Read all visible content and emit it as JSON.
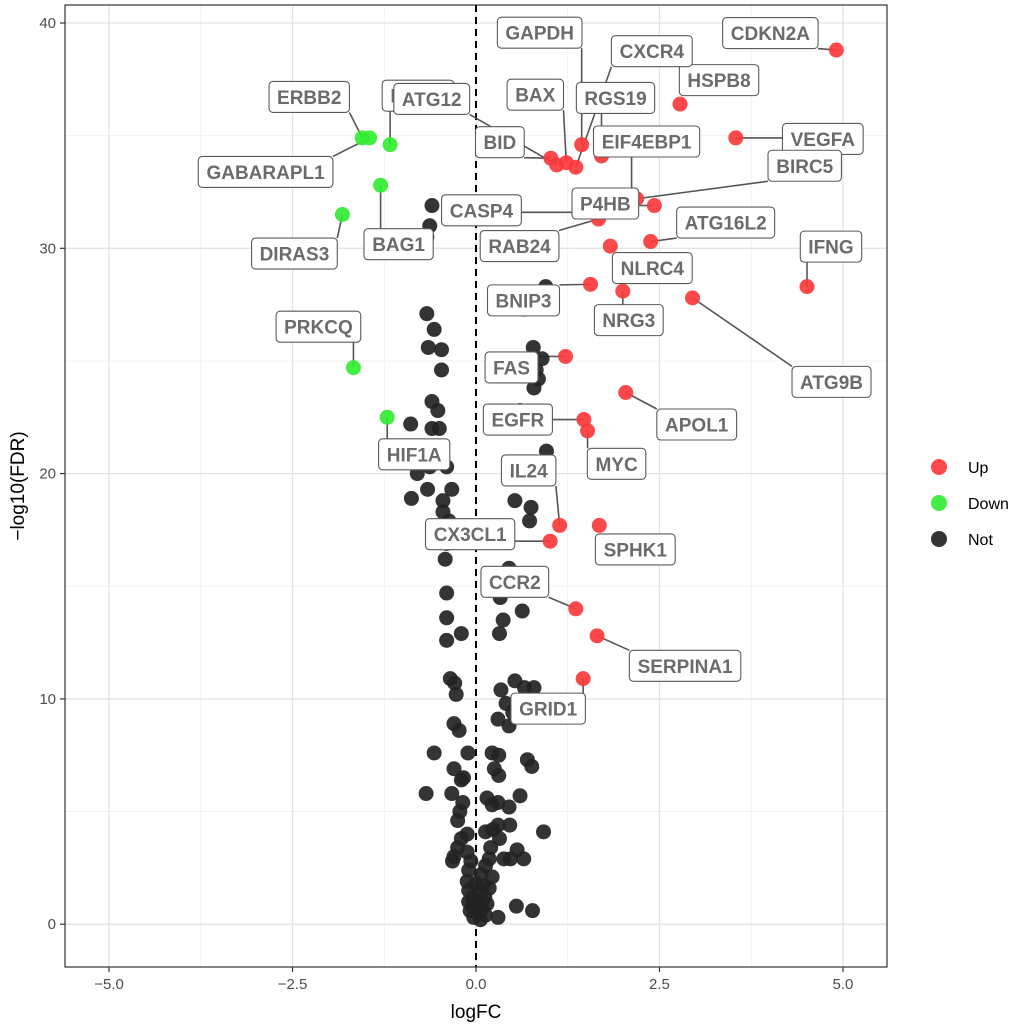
{
  "chart_data": {
    "type": "scatter",
    "title": "",
    "xlabel": "logFC",
    "ylabel": "−log10(FDR)",
    "xlim": [
      -5.6,
      5.6
    ],
    "ylim": [
      -1.9,
      40.8
    ],
    "xticks": [
      -5.0,
      -2.5,
      0.0,
      2.5,
      5.0
    ],
    "xtick_labels": [
      "−5.0",
      "−2.5",
      "0.0",
      "2.5",
      "5.0"
    ],
    "yticks": [
      0,
      10,
      20,
      30,
      40
    ],
    "ytick_labels": [
      "0",
      "10",
      "20",
      "30",
      "40"
    ],
    "grid": true,
    "threshold_line_x": 0,
    "legend": {
      "position": "right",
      "entries": [
        {
          "label": "Up",
          "color": "#f8393c"
        },
        {
          "label": "Down",
          "color": "#33ed33"
        },
        {
          "label": "Not",
          "color": "#232323"
        }
      ]
    },
    "series": [
      {
        "name": "Up",
        "color": "#f8393c",
        "points": [
          {
            "x": 4.91,
            "y": 38.8,
            "label": "CDKN2A"
          },
          {
            "x": 2.78,
            "y": 36.4,
            "label": "HSPB8"
          },
          {
            "x": 3.54,
            "y": 34.9,
            "label": "VEGFA"
          },
          {
            "x": 1.44,
            "y": 34.6,
            "label": "GAPDH"
          },
          {
            "x": 1.71,
            "y": 34.1,
            "label": "RGS19"
          },
          {
            "x": 1.02,
            "y": 34.0,
            "label": "BID"
          },
          {
            "x": 1.1,
            "y": 33.7,
            "label": "ATG12"
          },
          {
            "x": 1.23,
            "y": 33.8,
            "label": "BAX"
          },
          {
            "x": 1.36,
            "y": 33.6,
            "label": "CXCR4"
          },
          {
            "x": 2.12,
            "y": 32.3,
            "label": "EIF4EBP1"
          },
          {
            "x": 2.19,
            "y": 32.2,
            "label": "BIRC5"
          },
          {
            "x": 2.43,
            "y": 31.9,
            "label": "P4HB"
          },
          {
            "x": 1.75,
            "y": 31.6,
            "label": "CASP4"
          },
          {
            "x": 1.67,
            "y": 31.3,
            "label": "RAB24"
          },
          {
            "x": 2.38,
            "y": 30.3,
            "label": "ATG16L2"
          },
          {
            "x": 1.83,
            "y": 30.1,
            "label": "NLRC4"
          },
          {
            "x": 4.51,
            "y": 28.3,
            "label": "IFNG"
          },
          {
            "x": 1.56,
            "y": 28.4,
            "label": "BNIP3"
          },
          {
            "x": 2.0,
            "y": 28.1,
            "label": "NRG3"
          },
          {
            "x": 2.95,
            "y": 27.8,
            "label": "ATG9B"
          },
          {
            "x": 1.22,
            "y": 25.2,
            "label": "FAS"
          },
          {
            "x": 2.04,
            "y": 23.6,
            "label": "APOL1"
          },
          {
            "x": 1.47,
            "y": 22.4,
            "label": "EGFR"
          },
          {
            "x": 1.52,
            "y": 21.9,
            "label": "MYC"
          },
          {
            "x": 1.14,
            "y": 17.7,
            "label": "IL24"
          },
          {
            "x": 1.68,
            "y": 17.7,
            "label": "SPHK1"
          },
          {
            "x": 1.01,
            "y": 17.0,
            "label": "CX3CL1"
          },
          {
            "x": 1.36,
            "y": 14.0,
            "label": "CCR2"
          },
          {
            "x": 1.65,
            "y": 12.8,
            "label": "SERPINA1"
          },
          {
            "x": 1.46,
            "y": 10.9,
            "label": "GRID1"
          }
        ]
      },
      {
        "name": "Down",
        "color": "#33ed33",
        "points": [
          {
            "x": -1.55,
            "y": 34.9,
            "label": "ERBB2"
          },
          {
            "x": -1.45,
            "y": 34.9,
            "label": "GABARAPL1"
          },
          {
            "x": -1.17,
            "y": 34.6,
            "label": "MTOR"
          },
          {
            "x": -1.3,
            "y": 32.8,
            "label": "BAG1"
          },
          {
            "x": -1.82,
            "y": 31.5,
            "label": "DIRAS3"
          },
          {
            "x": -1.67,
            "y": 24.7,
            "label": "PRKCQ"
          },
          {
            "x": -1.21,
            "y": 22.5,
            "label": "HIF1A"
          }
        ]
      },
      {
        "name": "Not",
        "color": "#232323",
        "points": [
          {
            "x": -0.6,
            "y": 31.9
          },
          {
            "x": -0.63,
            "y": 31.0
          },
          {
            "x": -0.67,
            "y": 30.5
          },
          {
            "x": 0.95,
            "y": 28.3
          },
          {
            "x": 0.52,
            "y": 27.9
          },
          {
            "x": 0.65,
            "y": 27.3
          },
          {
            "x": -0.67,
            "y": 27.1
          },
          {
            "x": -0.57,
            "y": 26.4
          },
          {
            "x": -0.65,
            "y": 25.6
          },
          {
            "x": -0.47,
            "y": 25.5
          },
          {
            "x": 0.78,
            "y": 25.6
          },
          {
            "x": 0.9,
            "y": 25.1
          },
          {
            "x": -0.47,
            "y": 24.6
          },
          {
            "x": 0.82,
            "y": 24.6
          },
          {
            "x": 0.85,
            "y": 24.2
          },
          {
            "x": 0.79,
            "y": 23.8
          },
          {
            "x": -0.6,
            "y": 23.2
          },
          {
            "x": -0.52,
            "y": 22.8
          },
          {
            "x": -0.89,
            "y": 22.2
          },
          {
            "x": -0.6,
            "y": 22.0
          },
          {
            "x": -0.5,
            "y": 22.0
          },
          {
            "x": 0.6,
            "y": 22.8
          },
          {
            "x": 0.62,
            "y": 22.4
          },
          {
            "x": 0.96,
            "y": 21.0
          },
          {
            "x": -0.63,
            "y": 20.3
          },
          {
            "x": -0.8,
            "y": 20.0
          },
          {
            "x": -0.4,
            "y": 20.3
          },
          {
            "x": -0.66,
            "y": 19.3
          },
          {
            "x": -0.88,
            "y": 18.9
          },
          {
            "x": -0.33,
            "y": 19.3
          },
          {
            "x": -0.45,
            "y": 18.8
          },
          {
            "x": -0.45,
            "y": 18.3
          },
          {
            "x": -0.4,
            "y": 17.5
          },
          {
            "x": -0.37,
            "y": 17.9
          },
          {
            "x": 0.53,
            "y": 18.8
          },
          {
            "x": 0.75,
            "y": 18.5
          },
          {
            "x": 0.73,
            "y": 17.9
          },
          {
            "x": -0.4,
            "y": 16.9
          },
          {
            "x": -0.42,
            "y": 16.2
          },
          {
            "x": 0.45,
            "y": 15.8
          },
          {
            "x": -0.4,
            "y": 14.7
          },
          {
            "x": 0.33,
            "y": 14.5
          },
          {
            "x": 0.63,
            "y": 13.9
          },
          {
            "x": -0.4,
            "y": 13.6
          },
          {
            "x": 0.37,
            "y": 13.5
          },
          {
            "x": -0.4,
            "y": 12.6
          },
          {
            "x": -0.2,
            "y": 12.9
          },
          {
            "x": 0.32,
            "y": 12.9
          },
          {
            "x": -0.35,
            "y": 10.9
          },
          {
            "x": -0.29,
            "y": 10.7
          },
          {
            "x": -0.27,
            "y": 10.2
          },
          {
            "x": 0.34,
            "y": 10.4
          },
          {
            "x": 0.53,
            "y": 10.8
          },
          {
            "x": 0.66,
            "y": 10.5
          },
          {
            "x": 0.79,
            "y": 10.5
          },
          {
            "x": 0.41,
            "y": 9.8
          },
          {
            "x": 0.5,
            "y": 9.4
          },
          {
            "x": 0.3,
            "y": 9.1
          },
          {
            "x": 0.72,
            "y": 9.2
          },
          {
            "x": 0.45,
            "y": 8.8
          },
          {
            "x": -0.3,
            "y": 8.9
          },
          {
            "x": -0.23,
            "y": 8.6
          },
          {
            "x": -0.57,
            "y": 7.6
          },
          {
            "x": -0.11,
            "y": 7.6
          },
          {
            "x": 0.22,
            "y": 7.6
          },
          {
            "x": 0.31,
            "y": 7.5
          },
          {
            "x": 0.7,
            "y": 7.3
          },
          {
            "x": 0.76,
            "y": 7.0
          },
          {
            "x": -0.3,
            "y": 6.9
          },
          {
            "x": 0.25,
            "y": 6.9
          },
          {
            "x": 0.31,
            "y": 6.6
          },
          {
            "x": -0.17,
            "y": 6.5
          },
          {
            "x": -0.2,
            "y": 6.4
          },
          {
            "x": -0.68,
            "y": 5.8
          },
          {
            "x": -0.33,
            "y": 5.8
          },
          {
            "x": 0.15,
            "y": 5.6
          },
          {
            "x": 0.3,
            "y": 5.4
          },
          {
            "x": 0.22,
            "y": 5.3
          },
          {
            "x": 0.45,
            "y": 5.2
          },
          {
            "x": 0.6,
            "y": 5.7
          },
          {
            "x": -0.18,
            "y": 5.4
          },
          {
            "x": -0.22,
            "y": 5.0
          },
          {
            "x": -0.25,
            "y": 4.6
          },
          {
            "x": 0.3,
            "y": 4.4
          },
          {
            "x": 0.23,
            "y": 4.2
          },
          {
            "x": 0.13,
            "y": 4.1
          },
          {
            "x": 0.46,
            "y": 4.4
          },
          {
            "x": 0.92,
            "y": 4.1
          },
          {
            "x": -0.12,
            "y": 4.0
          },
          {
            "x": -0.2,
            "y": 3.8
          },
          {
            "x": 0.32,
            "y": 3.8
          },
          {
            "x": -0.25,
            "y": 3.4
          },
          {
            "x": -0.12,
            "y": 3.2
          },
          {
            "x": 0.2,
            "y": 3.4
          },
          {
            "x": 0.56,
            "y": 3.3
          },
          {
            "x": -0.3,
            "y": 3.0
          },
          {
            "x": -0.07,
            "y": 2.8
          },
          {
            "x": 0.18,
            "y": 2.9
          },
          {
            "x": 0.47,
            "y": 2.9
          },
          {
            "x": 0.65,
            "y": 2.9
          },
          {
            "x": -0.32,
            "y": 2.8
          },
          {
            "x": 0.13,
            "y": 2.6
          },
          {
            "x": 0.38,
            "y": 2.9
          },
          {
            "x": -0.1,
            "y": 2.4
          },
          {
            "x": 0.07,
            "y": 2.2
          },
          {
            "x": 0.22,
            "y": 2.1
          },
          {
            "x": -0.12,
            "y": 1.9
          },
          {
            "x": 0.0,
            "y": 1.8
          },
          {
            "x": 0.1,
            "y": 1.7
          },
          {
            "x": 0.18,
            "y": 1.6
          },
          {
            "x": -0.1,
            "y": 1.5
          },
          {
            "x": 0.05,
            "y": 1.4
          },
          {
            "x": -0.05,
            "y": 1.2
          },
          {
            "x": 0.12,
            "y": 1.2
          },
          {
            "x": -0.1,
            "y": 1.0
          },
          {
            "x": 0.02,
            "y": 1.0
          },
          {
            "x": 0.15,
            "y": 0.9
          },
          {
            "x": -0.05,
            "y": 0.8
          },
          {
            "x": 0.08,
            "y": 0.7
          },
          {
            "x": -0.08,
            "y": 0.6
          },
          {
            "x": 0.03,
            "y": 0.5
          },
          {
            "x": 0.13,
            "y": 0.4
          },
          {
            "x": -0.03,
            "y": 0.3
          },
          {
            "x": 0.06,
            "y": 0.2
          },
          {
            "x": 0.3,
            "y": 0.3
          },
          {
            "x": 0.55,
            "y": 0.8
          },
          {
            "x": 0.77,
            "y": 0.6
          }
        ]
      }
    ]
  }
}
